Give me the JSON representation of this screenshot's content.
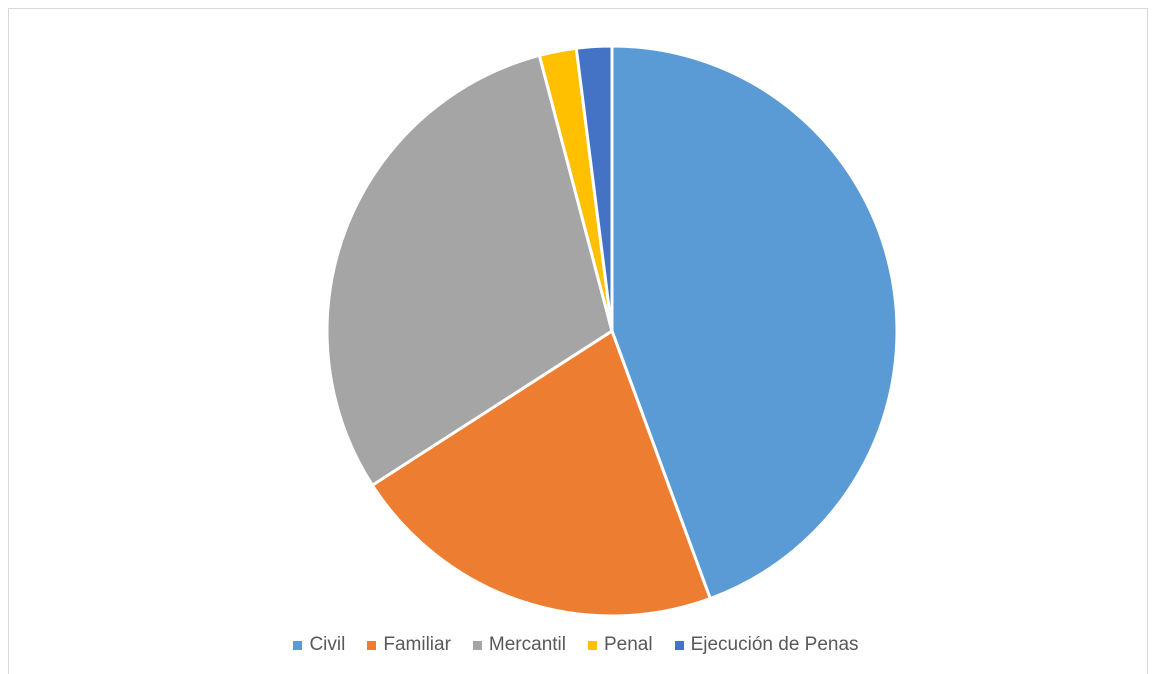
{
  "chart_data": {
    "type": "pie",
    "title": "",
    "categories": [
      "Civil",
      "Familiar",
      "Mercantil",
      "Penal",
      "Ejecución de Penas"
    ],
    "values": [
      44.4,
      21.5,
      30.0,
      2.1,
      2.0
    ],
    "colors": [
      "#5B9BD5",
      "#ED7D31",
      "#A5A5A5",
      "#FFC000",
      "#4472C4"
    ],
    "start_angle": "12 o'clock",
    "direction": "clockwise",
    "legend": "bottom"
  }
}
